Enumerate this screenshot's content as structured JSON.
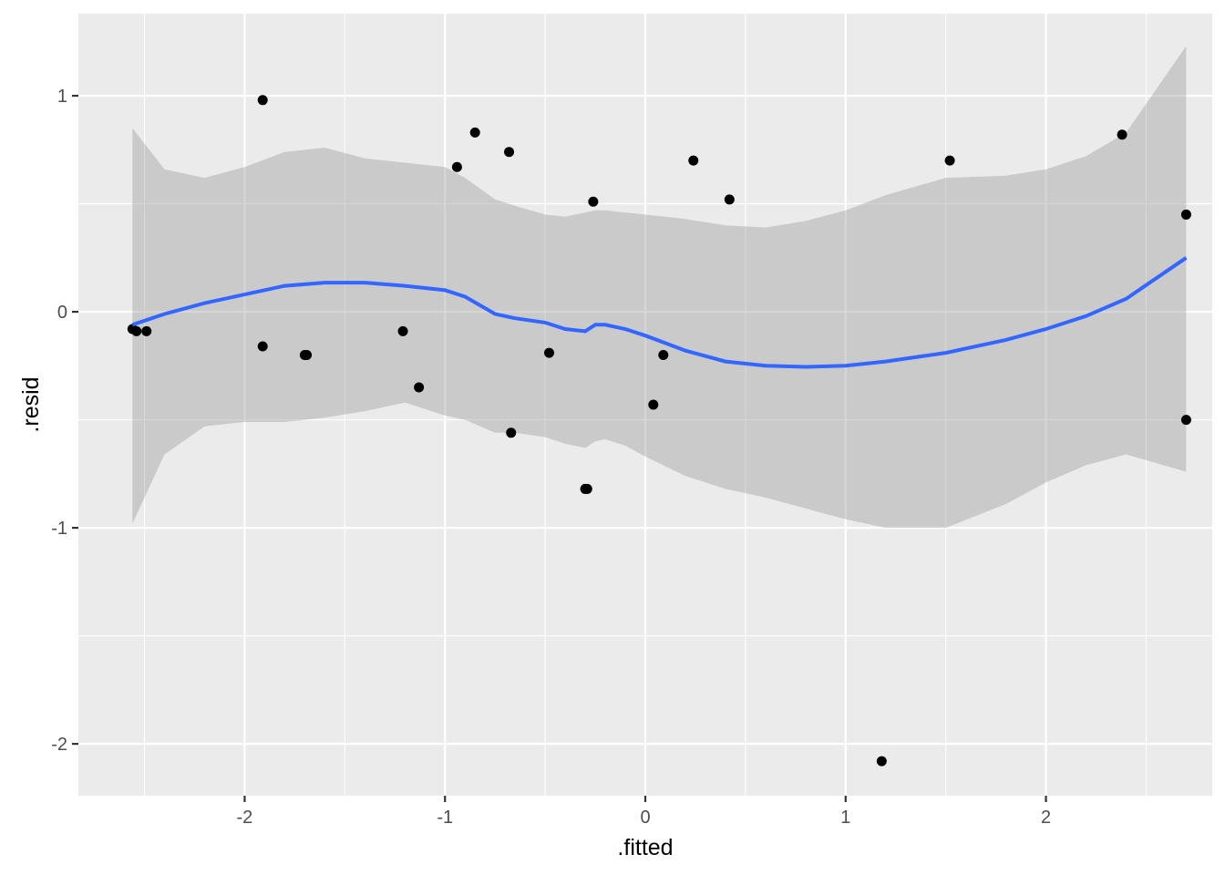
{
  "chart_data": {
    "type": "scatter",
    "title": "",
    "xlabel": ".fitted",
    "ylabel": ".resid",
    "xlim": [
      -2.83,
      2.83
    ],
    "ylim": [
      -2.24,
      1.38
    ],
    "x_ticks": [
      -2,
      -1,
      0,
      1,
      2
    ],
    "x_tick_labels": [
      "-2",
      "-1",
      "0",
      "1",
      "2"
    ],
    "y_ticks": [
      -2,
      -1,
      0,
      1
    ],
    "y_tick_labels": [
      "-2",
      "-1",
      "0",
      "1"
    ],
    "grid": true,
    "colors": {
      "panel_background": "#ebebeb",
      "grid_major": "#ffffff",
      "points": "#000000",
      "smooth_line": "#3366ff",
      "confidence_band": "#999999"
    },
    "points": [
      {
        "x": -2.56,
        "y": -0.08
      },
      {
        "x": -2.54,
        "y": -0.09
      },
      {
        "x": -2.49,
        "y": -0.09
      },
      {
        "x": -1.91,
        "y": 0.98
      },
      {
        "x": -1.91,
        "y": -0.16
      },
      {
        "x": -1.7,
        "y": -0.2
      },
      {
        "x": -1.69,
        "y": -0.2
      },
      {
        "x": -1.21,
        "y": -0.09
      },
      {
        "x": -1.13,
        "y": -0.35
      },
      {
        "x": -0.94,
        "y": 0.67
      },
      {
        "x": -0.85,
        "y": 0.83
      },
      {
        "x": -0.68,
        "y": 0.74
      },
      {
        "x": -0.67,
        "y": -0.56
      },
      {
        "x": -0.48,
        "y": -0.19
      },
      {
        "x": -0.3,
        "y": -0.82
      },
      {
        "x": -0.29,
        "y": -0.82
      },
      {
        "x": -0.26,
        "y": 0.51
      },
      {
        "x": 0.04,
        "y": -0.43
      },
      {
        "x": 0.09,
        "y": -0.2
      },
      {
        "x": 0.24,
        "y": 0.7
      },
      {
        "x": 0.42,
        "y": 0.52
      },
      {
        "x": 1.18,
        "y": -2.08
      },
      {
        "x": 1.52,
        "y": 0.7
      },
      {
        "x": 2.38,
        "y": 0.82
      },
      {
        "x": 2.7,
        "y": 0.45
      },
      {
        "x": 2.7,
        "y": -0.5
      }
    ],
    "smooth": {
      "method": "loess",
      "x": [
        -2.56,
        -2.4,
        -2.2,
        -2.0,
        -1.8,
        -1.6,
        -1.4,
        -1.2,
        -1.0,
        -0.9,
        -0.75,
        -0.65,
        -0.5,
        -0.4,
        -0.3,
        -0.25,
        -0.2,
        -0.1,
        0.0,
        0.2,
        0.4,
        0.6,
        0.8,
        1.0,
        1.2,
        1.5,
        1.8,
        2.0,
        2.2,
        2.4,
        2.7
      ],
      "y": [
        -0.06,
        -0.01,
        0.04,
        0.08,
        0.12,
        0.135,
        0.135,
        0.12,
        0.1,
        0.07,
        -0.01,
        -0.03,
        -0.05,
        -0.08,
        -0.09,
        -0.06,
        -0.06,
        -0.08,
        -0.11,
        -0.18,
        -0.23,
        -0.25,
        -0.255,
        -0.25,
        -0.23,
        -0.19,
        -0.13,
        -0.08,
        -0.02,
        0.06,
        0.25
      ],
      "upper": [
        0.85,
        0.66,
        0.62,
        0.67,
        0.74,
        0.76,
        0.71,
        0.69,
        0.67,
        0.62,
        0.52,
        0.49,
        0.45,
        0.44,
        0.46,
        0.47,
        0.47,
        0.46,
        0.45,
        0.43,
        0.4,
        0.39,
        0.42,
        0.47,
        0.54,
        0.62,
        0.63,
        0.66,
        0.72,
        0.83,
        1.23
      ],
      "lower": [
        -0.98,
        -0.66,
        -0.53,
        -0.51,
        -0.51,
        -0.49,
        -0.46,
        -0.42,
        -0.48,
        -0.5,
        -0.56,
        -0.56,
        -0.58,
        -0.61,
        -0.63,
        -0.6,
        -0.59,
        -0.62,
        -0.67,
        -0.76,
        -0.82,
        -0.86,
        -0.91,
        -0.96,
        -1.0,
        -1.0,
        -0.89,
        -0.79,
        -0.71,
        -0.66,
        -0.74
      ]
    }
  }
}
